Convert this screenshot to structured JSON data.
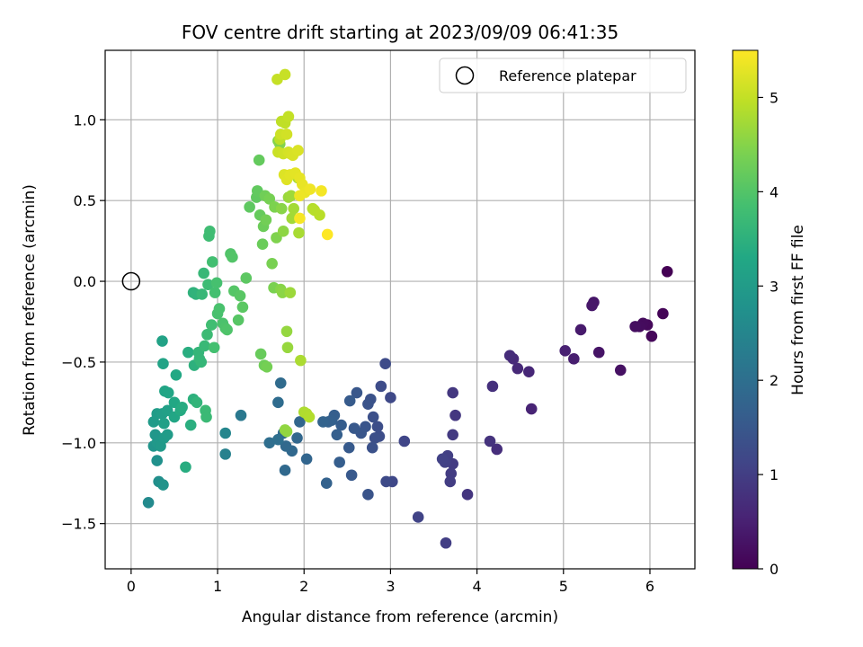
{
  "chart_data": {
    "type": "scatter",
    "title": "FOV centre drift starting at 2023/09/09 06:41:35",
    "xlabel": "Angular distance from reference (arcmin)",
    "ylabel": "Rotation from reference (arcmin)",
    "xlim": [
      -0.3,
      6.52
    ],
    "ylim": [
      -1.78,
      1.43
    ],
    "x_ticks": [
      0,
      1,
      2,
      3,
      4,
      5,
      6
    ],
    "y_ticks": [
      -1.5,
      -1.0,
      -0.5,
      0.0,
      0.5,
      1.0
    ],
    "x_tick_labels": [
      "0",
      "1",
      "2",
      "3",
      "4",
      "5",
      "6"
    ],
    "y_tick_labels": [
      "−1.5",
      "−1.0",
      "−0.5",
      "0.0",
      "0.5",
      "1.0"
    ],
    "grid": true,
    "legend": {
      "label": "Reference platepar",
      "placement": "top-right"
    },
    "reference_point": {
      "x": 0.0,
      "y": 0.0
    },
    "colorbar": {
      "label": "Hours from first FF file",
      "range": [
        0,
        5.5
      ],
      "ticks": [
        0,
        1,
        2,
        3,
        4,
        5
      ],
      "tick_labels": [
        "0",
        "1",
        "2",
        "3",
        "4",
        "5"
      ],
      "colormap": "viridis"
    },
    "points": [
      [
        6.2,
        0.06,
        0.0
      ],
      [
        6.15,
        -0.2,
        0.05
      ],
      [
        6.02,
        -0.34,
        0.1
      ],
      [
        5.97,
        -0.27,
        0.12
      ],
      [
        5.92,
        -0.26,
        0.15
      ],
      [
        5.88,
        -0.28,
        0.17
      ],
      [
        5.83,
        -0.28,
        0.2
      ],
      [
        5.66,
        -0.55,
        0.25
      ],
      [
        5.41,
        -0.44,
        0.3
      ],
      [
        5.35,
        -0.13,
        0.33
      ],
      [
        5.33,
        -0.15,
        0.35
      ],
      [
        5.2,
        -0.3,
        0.4
      ],
      [
        5.12,
        -0.48,
        0.45
      ],
      [
        5.02,
        -0.43,
        0.5
      ],
      [
        4.63,
        -0.79,
        0.55
      ],
      [
        4.6,
        -0.56,
        0.6
      ],
      [
        4.47,
        -0.54,
        0.63
      ],
      [
        4.42,
        -0.48,
        0.66
      ],
      [
        4.38,
        -0.46,
        0.7
      ],
      [
        4.23,
        -1.04,
        0.73
      ],
      [
        4.18,
        -0.65,
        0.76
      ],
      [
        4.15,
        -0.99,
        0.8
      ],
      [
        3.89,
        -1.32,
        0.85
      ],
      [
        3.75,
        -0.83,
        0.88
      ],
      [
        3.72,
        -0.69,
        0.9
      ],
      [
        3.72,
        -0.95,
        0.92
      ],
      [
        3.72,
        -1.13,
        0.94
      ],
      [
        3.7,
        -1.19,
        0.96
      ],
      [
        3.69,
        -1.24,
        0.98
      ],
      [
        3.64,
        -1.62,
        1.0
      ],
      [
        3.66,
        -1.08,
        1.02
      ],
      [
        3.63,
        -1.12,
        1.04
      ],
      [
        3.6,
        -1.1,
        1.06
      ],
      [
        3.32,
        -1.46,
        1.1
      ],
      [
        3.16,
        -0.99,
        1.15
      ],
      [
        3.02,
        -1.24,
        1.18
      ],
      [
        3.0,
        -0.72,
        1.2
      ],
      [
        2.95,
        -1.24,
        1.22
      ],
      [
        2.94,
        -0.51,
        1.24
      ],
      [
        2.89,
        -0.65,
        1.26
      ],
      [
        2.87,
        -0.96,
        1.28
      ],
      [
        2.85,
        -0.9,
        1.3
      ],
      [
        2.82,
        -0.97,
        1.32
      ],
      [
        2.8,
        -0.84,
        1.34
      ],
      [
        2.79,
        -1.03,
        1.36
      ],
      [
        2.77,
        -0.73,
        1.38
      ],
      [
        2.74,
        -0.76,
        1.4
      ],
      [
        2.74,
        -1.32,
        1.42
      ],
      [
        2.71,
        -0.9,
        1.44
      ],
      [
        2.66,
        -0.94,
        1.46
      ],
      [
        2.61,
        -0.69,
        1.48
      ],
      [
        2.58,
        -0.91,
        1.5
      ],
      [
        2.55,
        -1.2,
        1.52
      ],
      [
        2.52,
        -1.03,
        1.54
      ],
      [
        2.53,
        -0.74,
        1.56
      ],
      [
        2.43,
        -0.89,
        1.6
      ],
      [
        2.41,
        -1.12,
        1.62
      ],
      [
        2.38,
        -0.95,
        1.64
      ],
      [
        2.35,
        -0.83,
        1.66
      ],
      [
        2.32,
        -0.86,
        1.68
      ],
      [
        2.28,
        -0.87,
        1.7
      ],
      [
        2.26,
        -1.25,
        1.72
      ],
      [
        2.22,
        -0.87,
        1.74
      ],
      [
        2.03,
        -1.1,
        1.78
      ],
      [
        1.95,
        -0.87,
        1.8
      ],
      [
        1.92,
        -0.97,
        1.82
      ],
      [
        1.86,
        -1.05,
        1.84
      ],
      [
        1.79,
        -1.02,
        1.86
      ],
      [
        1.78,
        -1.17,
        1.88
      ],
      [
        1.76,
        -0.94,
        1.9
      ],
      [
        1.73,
        -0.63,
        1.92
      ],
      [
        1.7,
        -0.75,
        1.94
      ],
      [
        1.6,
        -1.0,
        1.97
      ],
      [
        1.7,
        -0.98,
        2.0
      ],
      [
        1.27,
        -0.83,
        2.2
      ],
      [
        1.09,
        -1.07,
        2.4
      ],
      [
        1.09,
        -0.94,
        2.5
      ],
      [
        0.2,
        -1.37,
        2.6
      ],
      [
        0.32,
        -1.24,
        2.7
      ],
      [
        0.37,
        -1.26,
        2.8
      ],
      [
        0.3,
        -1.11,
        2.75
      ],
      [
        0.26,
        -1.02,
        2.85
      ],
      [
        0.28,
        -0.95,
        2.9
      ],
      [
        0.3,
        -1.0,
        2.92
      ],
      [
        0.34,
        -1.02,
        2.95
      ],
      [
        0.38,
        -0.97,
        2.97
      ],
      [
        0.42,
        -0.95,
        3.0
      ],
      [
        0.26,
        -0.87,
        2.98
      ],
      [
        0.3,
        -0.82,
        3.02
      ],
      [
        0.36,
        -0.82,
        3.05
      ],
      [
        0.38,
        -0.88,
        3.1
      ],
      [
        0.42,
        -0.8,
        3.12
      ],
      [
        0.36,
        -0.37,
        3.15
      ],
      [
        0.37,
        -0.51,
        3.18
      ],
      [
        0.39,
        -0.68,
        3.2
      ],
      [
        0.43,
        -0.69,
        3.22
      ],
      [
        0.5,
        -0.84,
        3.25
      ],
      [
        0.5,
        -0.75,
        3.28
      ],
      [
        0.52,
        -0.58,
        3.3
      ],
      [
        0.57,
        -0.8,
        3.35
      ],
      [
        0.59,
        -0.78,
        3.38
      ],
      [
        0.63,
        -1.15,
        3.4
      ],
      [
        0.66,
        -0.44,
        3.42
      ],
      [
        0.69,
        -0.89,
        3.45
      ],
      [
        0.72,
        -0.73,
        3.48
      ],
      [
        0.73,
        -0.52,
        3.5
      ],
      [
        0.72,
        -0.07,
        3.52
      ],
      [
        0.75,
        -0.08,
        3.55
      ],
      [
        0.76,
        -0.75,
        3.58
      ],
      [
        0.78,
        -0.44,
        3.6
      ],
      [
        0.79,
        -0.48,
        3.62
      ],
      [
        0.81,
        -0.5,
        3.63
      ],
      [
        0.82,
        -0.08,
        3.65
      ],
      [
        0.84,
        0.05,
        3.66
      ],
      [
        0.85,
        -0.4,
        3.68
      ],
      [
        0.86,
        -0.8,
        3.7
      ],
      [
        0.87,
        -0.84,
        3.71
      ],
      [
        0.88,
        -0.33,
        3.73
      ],
      [
        0.89,
        -0.02,
        3.75
      ],
      [
        0.9,
        0.28,
        3.77
      ],
      [
        0.91,
        0.31,
        3.78
      ],
      [
        0.93,
        -0.27,
        3.8
      ],
      [
        0.94,
        0.12,
        3.82
      ],
      [
        0.96,
        -0.41,
        3.84
      ],
      [
        0.97,
        -0.07,
        3.85
      ],
      [
        0.99,
        -0.01,
        3.87
      ],
      [
        1.0,
        -0.2,
        3.89
      ],
      [
        1.02,
        -0.17,
        3.9
      ],
      [
        1.06,
        -0.26,
        3.92
      ],
      [
        1.09,
        -0.29,
        3.94
      ],
      [
        1.11,
        -0.3,
        3.96
      ],
      [
        1.15,
        0.17,
        3.98
      ],
      [
        1.17,
        0.15,
        4.0
      ],
      [
        1.19,
        -0.06,
        4.02
      ],
      [
        1.24,
        -0.24,
        4.04
      ],
      [
        1.26,
        -0.09,
        4.06
      ],
      [
        1.29,
        -0.16,
        4.08
      ],
      [
        1.33,
        0.02,
        4.1
      ],
      [
        1.37,
        0.46,
        4.12
      ],
      [
        1.45,
        0.52,
        4.14
      ],
      [
        1.46,
        0.56,
        4.16
      ],
      [
        1.48,
        0.75,
        4.18
      ],
      [
        1.49,
        0.41,
        4.2
      ],
      [
        1.5,
        -0.45,
        4.22
      ],
      [
        1.52,
        0.23,
        4.24
      ],
      [
        1.53,
        0.34,
        4.26
      ],
      [
        1.54,
        -0.52,
        4.28
      ],
      [
        1.55,
        0.53,
        4.3
      ],
      [
        1.56,
        0.38,
        4.32
      ],
      [
        1.57,
        -0.53,
        4.34
      ],
      [
        1.6,
        0.51,
        4.36
      ],
      [
        1.63,
        0.11,
        4.38
      ],
      [
        1.65,
        -0.04,
        4.4
      ],
      [
        1.66,
        0.46,
        4.42
      ],
      [
        1.68,
        0.27,
        4.44
      ],
      [
        1.7,
        0.87,
        4.46
      ],
      [
        1.72,
        0.85,
        4.48
      ],
      [
        1.73,
        -0.05,
        4.5
      ],
      [
        1.74,
        0.45,
        4.52
      ],
      [
        1.75,
        -0.07,
        4.54
      ],
      [
        1.76,
        0.31,
        4.56
      ],
      [
        1.78,
        -0.92,
        4.58
      ],
      [
        1.8,
        -0.93,
        4.6
      ],
      [
        1.8,
        -0.31,
        4.62
      ],
      [
        1.81,
        -0.41,
        4.64
      ],
      [
        1.82,
        0.52,
        4.66
      ],
      [
        1.84,
        -0.07,
        4.68
      ],
      [
        1.85,
        0.53,
        4.7
      ],
      [
        1.86,
        0.39,
        4.72
      ],
      [
        1.88,
        0.45,
        4.74
      ],
      [
        1.93,
        0.64,
        4.76
      ],
      [
        1.94,
        0.3,
        4.78
      ],
      [
        1.96,
        -0.49,
        4.8
      ],
      [
        2.0,
        -0.81,
        4.82
      ],
      [
        2.03,
        -0.82,
        4.84
      ],
      [
        2.06,
        -0.84,
        4.86
      ],
      [
        2.1,
        0.45,
        4.88
      ],
      [
        2.12,
        0.44,
        4.9
      ],
      [
        2.18,
        0.41,
        4.92
      ],
      [
        1.72,
        0.88,
        4.94
      ],
      [
        1.74,
        0.99,
        4.96
      ],
      [
        1.78,
        0.98,
        4.98
      ],
      [
        1.82,
        1.02,
        5.0
      ],
      [
        1.69,
        1.25,
        5.02
      ],
      [
        1.78,
        1.28,
        5.04
      ],
      [
        1.7,
        0.8,
        5.06
      ],
      [
        1.73,
        0.91,
        5.08
      ],
      [
        1.76,
        0.79,
        5.1
      ],
      [
        1.8,
        0.91,
        5.12
      ],
      [
        1.82,
        0.8,
        5.14
      ],
      [
        1.84,
        0.79,
        5.16
      ],
      [
        1.87,
        0.78,
        5.18
      ],
      [
        1.93,
        0.81,
        5.2
      ],
      [
        1.77,
        0.66,
        5.22
      ],
      [
        1.8,
        0.63,
        5.24
      ],
      [
        1.84,
        0.66,
        5.26
      ],
      [
        1.9,
        0.67,
        5.28
      ],
      [
        1.95,
        0.64,
        5.3
      ],
      [
        1.98,
        0.6,
        5.32
      ],
      [
        2.01,
        0.55,
        5.34
      ],
      [
        1.95,
        0.53,
        5.36
      ],
      [
        2.07,
        0.57,
        5.38
      ],
      [
        2.2,
        0.56,
        5.42
      ],
      [
        1.95,
        0.39,
        5.44
      ],
      [
        2.27,
        0.29,
        5.5
      ]
    ]
  }
}
